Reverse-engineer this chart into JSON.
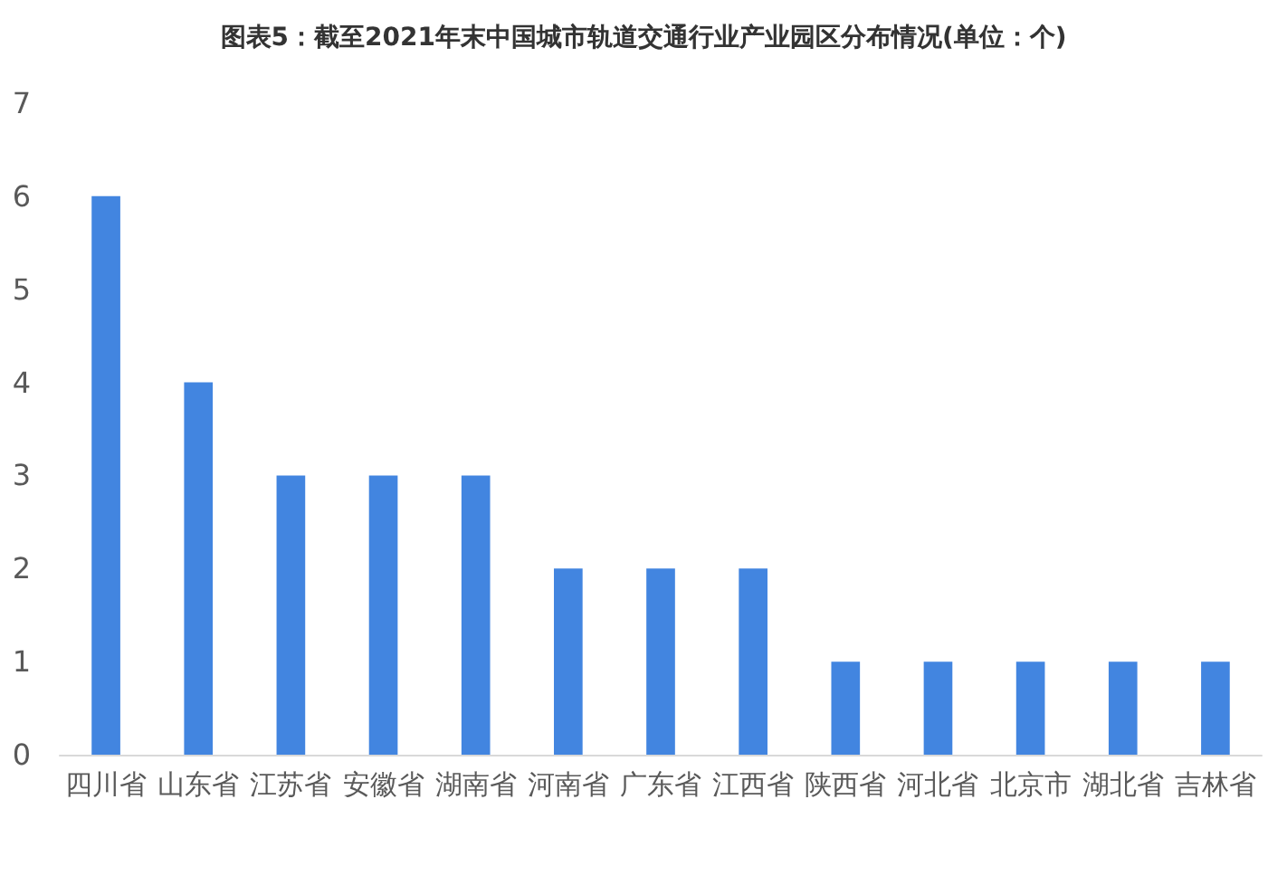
{
  "chart_data": {
    "type": "bar",
    "title": "图表5：截至2021年末中国城市轨道交通行业产业园区分布情况(单位：个)",
    "categories": [
      "四川省",
      "山东省",
      "江苏省",
      "安徽省",
      "湖南省",
      "河南省",
      "广东省",
      "江西省",
      "陕西省",
      "河北省",
      "北京市",
      "湖北省",
      "吉林省"
    ],
    "values": [
      6,
      4,
      3,
      3,
      3,
      2,
      2,
      2,
      1,
      1,
      1,
      1,
      1
    ],
    "color": "#4285e0",
    "ylim": [
      0,
      7
    ],
    "yticks": [
      0,
      1,
      2,
      3,
      4,
      5,
      6,
      7
    ],
    "grid": false
  }
}
